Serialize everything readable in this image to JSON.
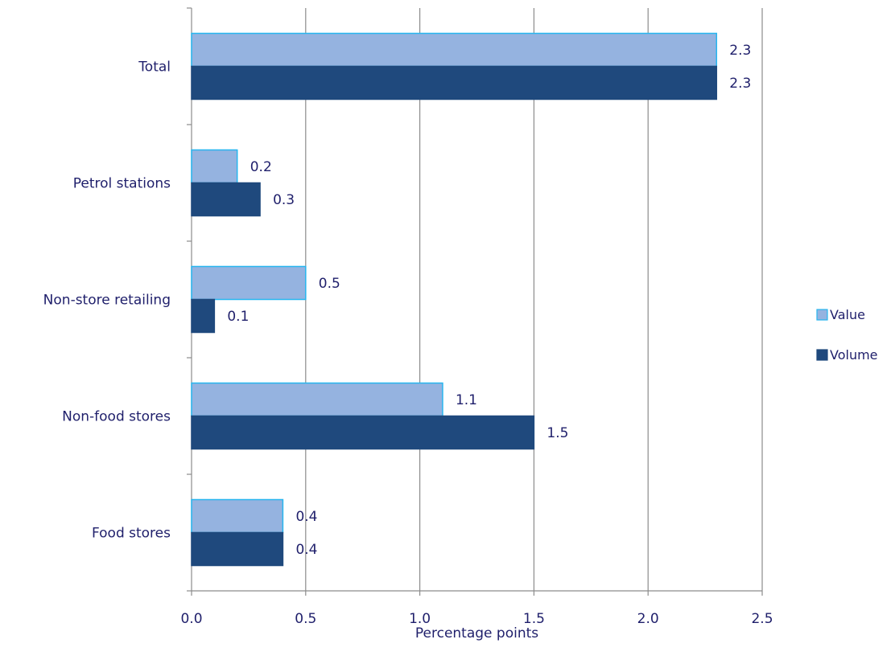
{
  "chart_data": {
    "type": "bar",
    "orientation": "horizontal",
    "categories": [
      "Total",
      "Petrol stations",
      "Non-store retailing",
      "Non-food stores",
      "Food stores"
    ],
    "series": [
      {
        "name": "Value",
        "color": "#95b3e0",
        "border": "#27b6ef",
        "values": [
          2.3,
          0.2,
          0.5,
          1.1,
          0.4
        ]
      },
      {
        "name": "Volume",
        "color": "#1f497d",
        "border": "#1f497d",
        "values": [
          2.3,
          0.3,
          0.1,
          1.5,
          0.4
        ]
      }
    ],
    "x_ticks": [
      "0.0",
      "0.5",
      "1.0",
      "1.5",
      "2.0",
      "2.5"
    ],
    "xlim": [
      0,
      2.5
    ],
    "xlabel": "Percentage points",
    "ylabel": "",
    "title": "",
    "grid": "vertical",
    "legend": "right"
  }
}
